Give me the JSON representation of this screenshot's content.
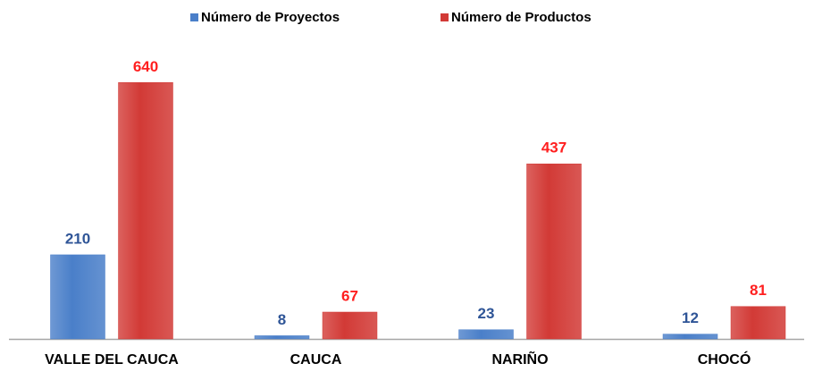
{
  "chart_data": {
    "type": "bar",
    "categories": [
      "VALLE DEL CAUCA",
      "CAUCA",
      "NARIÑO",
      "CHOCÓ"
    ],
    "series": [
      {
        "name": "Número de Proyectos",
        "color": "#4a7fc9",
        "label_color": "#2f5597",
        "values": [
          210,
          8,
          23,
          12
        ]
      },
      {
        "name": "Número de Productos",
        "color": "#d23a36",
        "label_color": "#ff1f1f",
        "values": [
          640,
          67,
          437,
          81
        ]
      }
    ],
    "legend": "top"
  }
}
